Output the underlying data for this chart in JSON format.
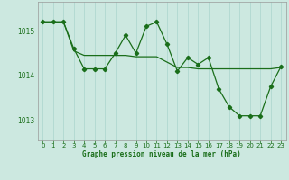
{
  "title": "Graphe pression niveau de la mer (hPa)",
  "background_color": "#cce8e0",
  "plot_bg_color": "#cce8e0",
  "grid_color": "#aad4cc",
  "line_color": "#1a6e1a",
  "xlim": [
    -0.5,
    23.5
  ],
  "ylim": [
    1012.55,
    1015.65
  ],
  "yticks": [
    1013,
    1014,
    1015
  ],
  "xticks": [
    0,
    1,
    2,
    3,
    4,
    5,
    6,
    7,
    8,
    9,
    10,
    11,
    12,
    13,
    14,
    15,
    16,
    17,
    18,
    19,
    20,
    21,
    22,
    23
  ],
  "series_main": [
    1015.2,
    1015.2,
    1015.2,
    1014.6,
    1014.15,
    1014.15,
    1014.15,
    1014.5,
    1014.9,
    1014.5,
    1015.1,
    1015.2,
    1014.7,
    1014.1,
    1014.4,
    1014.25,
    1014.4,
    1013.7,
    1013.3,
    1013.1,
    1013.1,
    1013.1,
    1013.75,
    1014.2
  ],
  "series_trend": [
    1015.2,
    1015.2,
    1015.2,
    1014.55,
    1014.45,
    1014.45,
    1014.45,
    1014.45,
    1014.45,
    1014.42,
    1014.42,
    1014.42,
    1014.3,
    1014.18,
    1014.18,
    1014.15,
    1014.15,
    1014.15,
    1014.15,
    1014.15,
    1014.15,
    1014.15,
    1014.15,
    1014.18
  ]
}
